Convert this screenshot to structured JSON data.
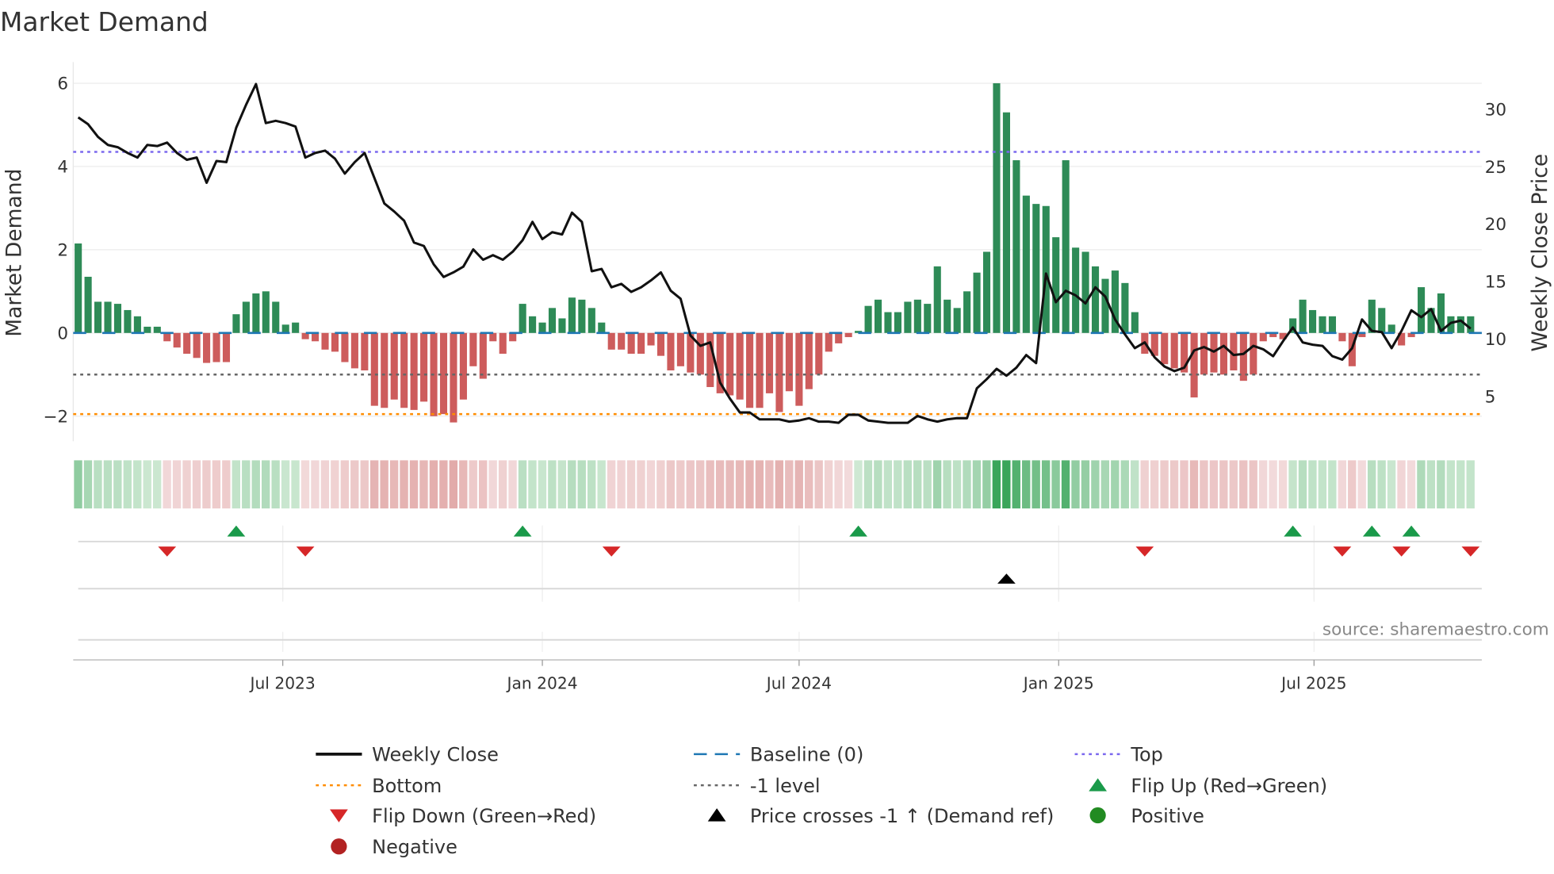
{
  "chart_data": {
    "type": "bar",
    "title": "Market Demand",
    "ylabel": "Market Demand",
    "y2label": "Weekly Close Price",
    "source": "source: sharemaestro.com",
    "start_week": "2023-02-06",
    "interval": "weekly",
    "ylim": [
      -2.5,
      6.45
    ],
    "y2lim": [
      0,
      33
    ],
    "yticks": [
      6,
      4,
      2,
      0,
      -2
    ],
    "ytick_labels": [
      "6",
      "4",
      "2",
      "0",
      "−2"
    ],
    "y2ticks": [
      30,
      25,
      20,
      15,
      10,
      5
    ],
    "y2tick_labels": [
      "30",
      "25",
      "20",
      "15",
      "10",
      "5"
    ],
    "xticks": [
      {
        "date": "2023-07-01",
        "label": "Jul 2023"
      },
      {
        "date": "2024-01-01",
        "label": "Jan 2024"
      },
      {
        "date": "2024-07-01",
        "label": "Jul 2024"
      },
      {
        "date": "2025-01-01",
        "label": "Jan 2025"
      },
      {
        "date": "2025-07-01",
        "label": "Jul 2025"
      }
    ],
    "reference_lines": {
      "top": 4.35,
      "minus_one": -1,
      "bottom": -1.95,
      "baseline": 0
    },
    "demand": [
      2.15,
      1.35,
      0.75,
      0.75,
      0.7,
      0.55,
      0.4,
      0.15,
      0.15,
      -0.2,
      -0.35,
      -0.5,
      -0.6,
      -0.72,
      -0.7,
      -0.7,
      0.45,
      0.75,
      0.95,
      1.0,
      0.75,
      0.2,
      0.25,
      -0.15,
      -0.2,
      -0.4,
      -0.45,
      -0.7,
      -0.85,
      -0.9,
      -1.75,
      -1.8,
      -1.6,
      -1.8,
      -1.85,
      -1.65,
      -2.0,
      -1.95,
      -2.15,
      -1.6,
      -0.8,
      -1.1,
      -0.2,
      -0.5,
      -0.2,
      0.7,
      0.4,
      0.25,
      0.6,
      0.35,
      0.85,
      0.8,
      0.6,
      0.25,
      -0.4,
      -0.4,
      -0.5,
      -0.5,
      -0.3,
      -0.55,
      -0.9,
      -0.8,
      -0.95,
      -1.0,
      -1.3,
      -1.45,
      -1.5,
      -1.6,
      -1.8,
      -1.8,
      -1.45,
      -1.9,
      -1.4,
      -1.75,
      -1.35,
      -1.0,
      -0.45,
      -0.25,
      -0.1,
      0.05,
      0.65,
      0.8,
      0.5,
      0.5,
      0.75,
      0.8,
      0.7,
      1.6,
      0.8,
      0.6,
      1.0,
      1.45,
      1.95,
      6.0,
      5.3,
      4.15,
      3.3,
      3.1,
      3.05,
      2.3,
      4.15,
      2.05,
      1.95,
      1.6,
      1.3,
      1.5,
      1.2,
      0.5,
      -0.5,
      -0.55,
      -0.75,
      -0.85,
      -0.95,
      -1.55,
      -1.0,
      -0.95,
      -1.0,
      -0.9,
      -1.15,
      -1.0,
      -0.2,
      -0.1,
      -0.15,
      0.35,
      0.8,
      0.55,
      0.4,
      0.4,
      -0.2,
      -0.8,
      -0.1,
      0.8,
      0.6,
      0.2,
      -0.3,
      -0.1,
      1.1,
      0.6,
      0.95,
      0.4,
      0.4,
      0.4
    ],
    "close": [
      29.3,
      28.7,
      27.6,
      26.9,
      26.7,
      26.2,
      25.8,
      26.9,
      26.8,
      27.1,
      26.2,
      25.6,
      25.8,
      23.6,
      25.5,
      25.4,
      28.4,
      30.4,
      32.2,
      28.8,
      29.0,
      28.8,
      28.5,
      25.8,
      26.2,
      26.4,
      25.7,
      24.4,
      25.4,
      26.2,
      24.0,
      21.8,
      21.1,
      20.3,
      18.4,
      18.1,
      16.5,
      15.4,
      15.8,
      16.3,
      17.8,
      16.9,
      17.3,
      16.9,
      17.6,
      18.6,
      20.2,
      18.7,
      19.3,
      19.1,
      21.0,
      20.2,
      15.9,
      16.1,
      14.5,
      14.8,
      14.1,
      14.5,
      15.1,
      15.8,
      14.2,
      13.5,
      10.3,
      9.4,
      9.7,
      6.2,
      4.8,
      3.6,
      3.6,
      3.0,
      3.0,
      3.0,
      2.8,
      2.9,
      3.1,
      2.8,
      2.8,
      2.7,
      3.4,
      3.4,
      2.9,
      2.8,
      2.7,
      2.7,
      2.7,
      3.3,
      3.0,
      2.8,
      3.0,
      3.1,
      3.1,
      5.7,
      6.5,
      7.4,
      6.8,
      7.5,
      8.6,
      7.9,
      15.7,
      13.2,
      14.2,
      13.8,
      13.1,
      14.5,
      13.7,
      11.7,
      10.4,
      9.2,
      9.7,
      8.4,
      7.6,
      7.2,
      7.5,
      9.0,
      9.3,
      8.9,
      9.4,
      8.6,
      8.7,
      9.4,
      9.1,
      8.5,
      9.8,
      11.0,
      9.7,
      9.5,
      9.4,
      8.5,
      8.2,
      9.2,
      11.7,
      10.7,
      10.6,
      9.2,
      10.7,
      12.5,
      11.9,
      12.6,
      10.7,
      11.4,
      11.6,
      10.9
    ],
    "flip_up_weeks": [
      16,
      45,
      79,
      123,
      131,
      135
    ],
    "flip_down_weeks": [
      9,
      23,
      54,
      108,
      128,
      134,
      141
    ],
    "price_cross_weeks": [
      94
    ],
    "colors": {
      "positive": "#2e8b57",
      "negative": "#cd5c5c",
      "close": "#111111",
      "baseline": "#1f77b4",
      "top": "#7b68ee",
      "bottom": "#ff8c00",
      "minus_one": "#666666",
      "flip_up": "#1a9a4a",
      "flip_down": "#d62728",
      "cross": "#000000",
      "positive_dot": "#228b22",
      "negative_dot": "#b22222"
    },
    "legend": [
      {
        "label": "Weekly Close",
        "kind": "line"
      },
      {
        "label": "Baseline (0)",
        "kind": "baseline"
      },
      {
        "label": "Top",
        "kind": "top"
      },
      {
        "label": "Bottom",
        "kind": "bottom"
      },
      {
        "label": "-1 level",
        "kind": "minus_one"
      },
      {
        "label": "Flip Up (Red→Green)",
        "kind": "flip_up"
      },
      {
        "label": "Flip Down (Green→Red)",
        "kind": "flip_down"
      },
      {
        "label": "Price crosses -1 ↑ (Demand ref)",
        "kind": "cross"
      },
      {
        "label": "Positive",
        "kind": "positive_dot"
      },
      {
        "label": "Negative",
        "kind": "negative_dot"
      }
    ]
  }
}
